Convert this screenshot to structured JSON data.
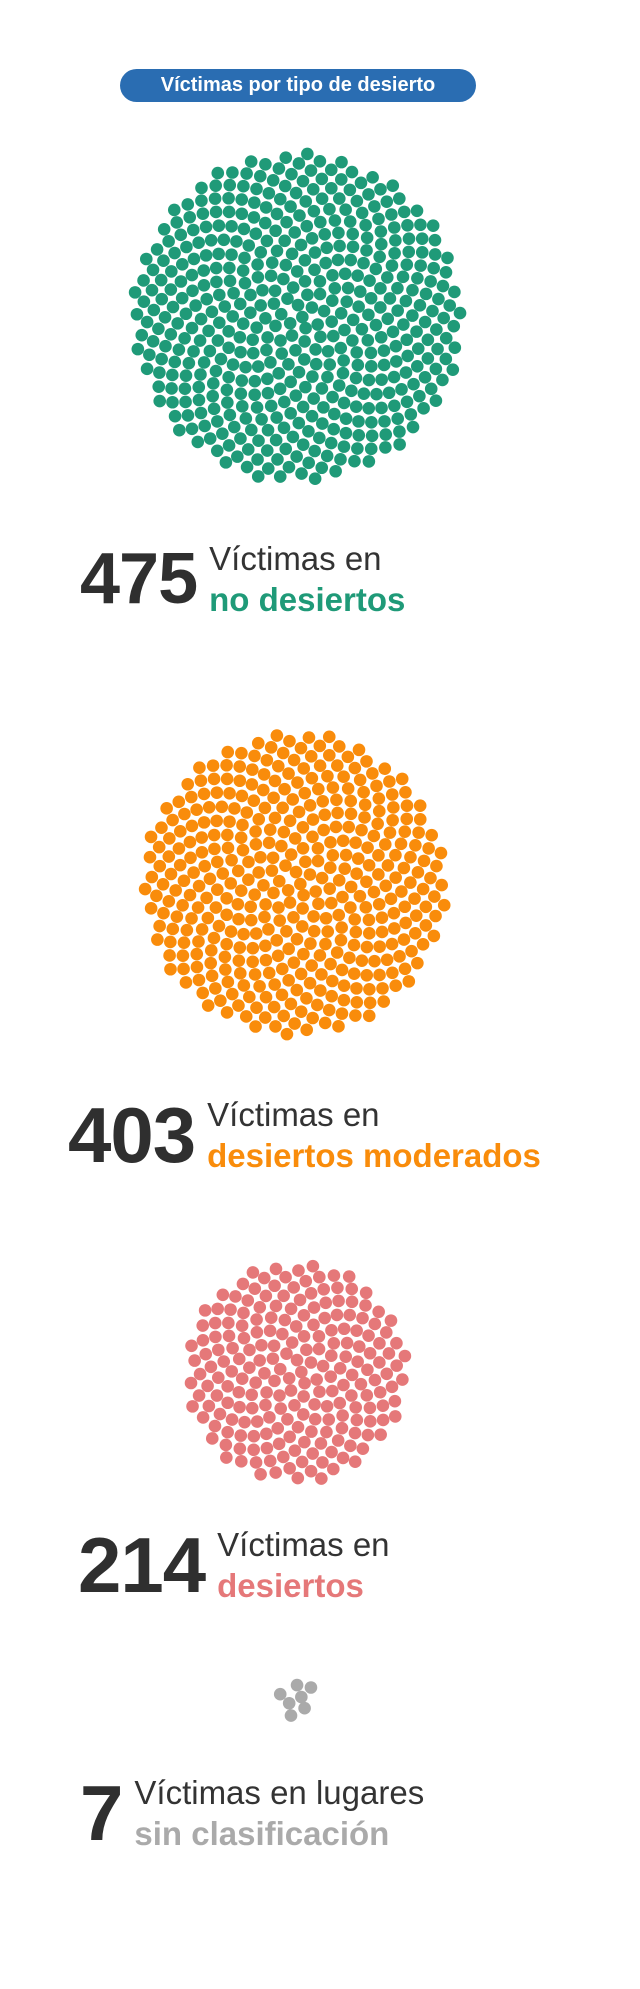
{
  "header": {
    "title": "Víctimas por tipo de desierto"
  },
  "chart_data": {
    "type": "dot_cluster",
    "title": "Víctimas por tipo de desierto",
    "categories": [
      "no desiertos",
      "desiertos moderados",
      "desiertos",
      "sin clasificación"
    ],
    "values": [
      475,
      403,
      214,
      7
    ],
    "colors": [
      "#1f9a78",
      "#f98c0b",
      "#e57879",
      "#aaaaaa"
    ]
  },
  "stats": [
    {
      "number": "475",
      "prefix": "Víctimas en",
      "category": "no desiertos",
      "color": "#1f9a78"
    },
    {
      "number": "403",
      "prefix": "Víctimas en",
      "category": "desiertos moderados",
      "color": "#f98c0b"
    },
    {
      "number": "214",
      "prefix": "Víctimas en",
      "category": "desiertos",
      "color": "#e57879"
    },
    {
      "number": "7",
      "prefix": "Víctimas en lugares",
      "category": "sin clasificación",
      "color": "#aaaaaa"
    }
  ]
}
